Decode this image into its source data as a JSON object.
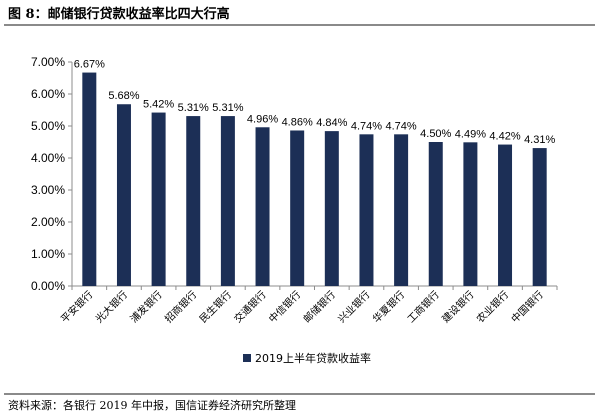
{
  "header": {
    "title": "图 8：邮储银行贷款收益率比四大行高"
  },
  "footer": {
    "source": "资料来源：各银行 2019 年中报，国信证券经济研究所整理"
  },
  "colors": {
    "bar": "#1c2f56",
    "axis": "#8c8c8c",
    "rule": "#8a8a8a"
  },
  "chart_data": {
    "type": "bar",
    "categories": [
      "平安银行",
      "光大银行",
      "浦发银行",
      "招商银行",
      "民生银行",
      "交通银行",
      "中信银行",
      "邮储银行",
      "兴业银行",
      "华夏银行",
      "工商银行",
      "建设银行",
      "农业银行",
      "中国银行"
    ],
    "series": [
      {
        "name": "2019上半年贷款收益率",
        "values": [
          6.67,
          5.68,
          5.42,
          5.31,
          5.31,
          4.96,
          4.86,
          4.84,
          4.74,
          4.74,
          4.5,
          4.49,
          4.42,
          4.31
        ],
        "labels": [
          "6.67%",
          "5.68%",
          "5.42%",
          "5.31%",
          "5.31%",
          "4.96%",
          "4.86%",
          "4.84%",
          "4.74%",
          "4.74%",
          "4.50%",
          "4.49%",
          "4.42%",
          "4.31%"
        ]
      }
    ],
    "yticks": [
      "0.00%",
      "1.00%",
      "2.00%",
      "3.00%",
      "4.00%",
      "5.00%",
      "6.00%",
      "7.00%"
    ],
    "ylim": [
      0,
      7
    ],
    "grid": false,
    "legend_position": "bottom"
  }
}
